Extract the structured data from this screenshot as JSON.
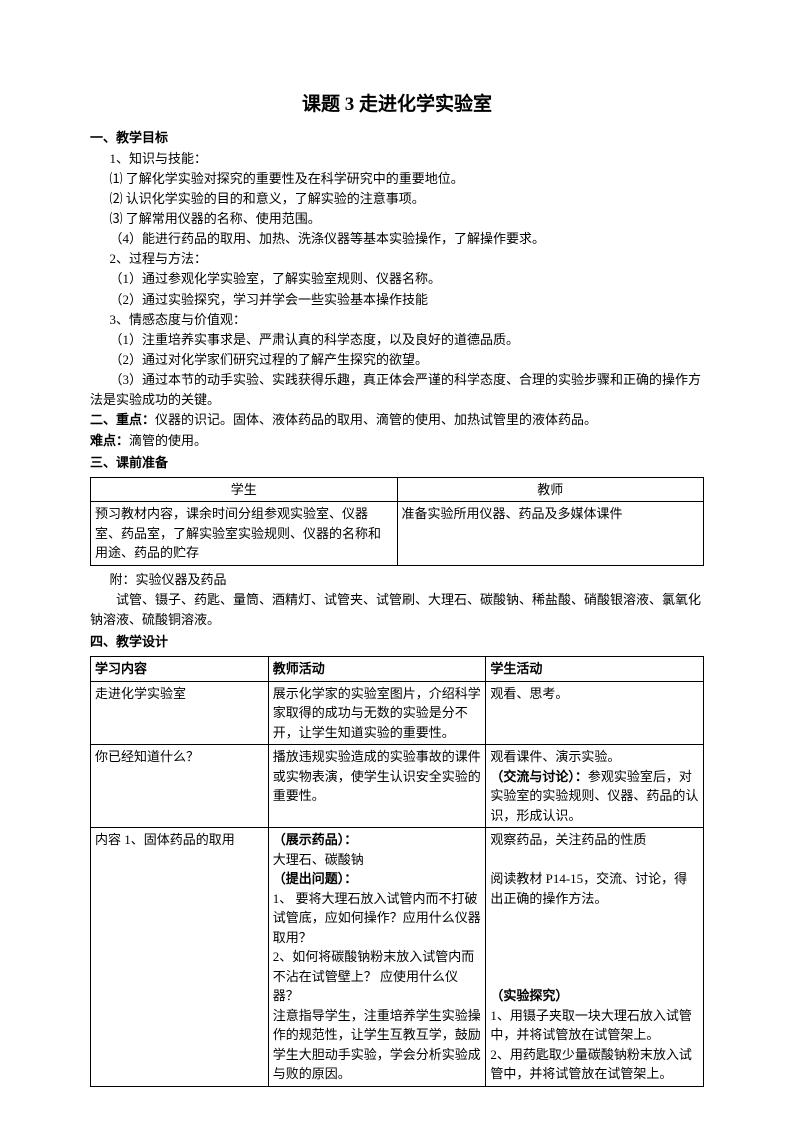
{
  "title": "课题 3 走进化学实验室",
  "section1": {
    "heading": "一、教学目标",
    "sub1": "1、知识与技能：",
    "items1": [
      "⑴ 了解化学实验对探究的重要性及在科学研究中的重要地位。",
      "⑵ 认识化学实验的目的和意义，了解实验的注意事项。",
      "⑶ 了解常用仪器的名称、使用范围。",
      "（4）能进行药品的取用、加热、洗涤仪器等基本实验操作，了解操作要求。"
    ],
    "sub2": "2、过程与方法：",
    "items2": [
      "（1）通过参观化学实验室，了解实验室规则、仪器名称。",
      "（2）通过实验探究，学习并学会一些实验基本操作技能"
    ],
    "sub3": "3、情感态度与价值观：",
    "items3": [
      "（1）注重培养实事求是、严肃认真的科学态度，以及良好的道德品质。",
      "（2）通过对化学家们研究过程的了解产生探究的欲望。",
      "（3）通过本节的动手实验、实践获得乐趣，真正体会严谨的科学态度、合理的实验步骤和正确的操作方法是实验成功的关键。"
    ]
  },
  "section2": {
    "heading_prefix": "二、重点：",
    "heading_text": "仪器的识记。固体、液体药品的取用、滴管的使用、加热试管里的液体药品。",
    "difficulty_prefix": "难点：",
    "difficulty_text": "滴管的使用。"
  },
  "section3": {
    "heading": "三、课前准备"
  },
  "table1": {
    "headers": [
      "学生",
      "教师"
    ],
    "row": [
      "预习教材内容，课余时间分组参观实验室、仪器室、药品室，了解实验室实验规则、仪器的名称和用途、药品的贮存",
      "准备实验所用仪器、药品及多媒体课件"
    ]
  },
  "appendix": {
    "label": "附：实验仪器及药品",
    "text": "试管、镊子、药匙、量筒、酒精灯、试管夹、试管刷、大理石、碳酸钠、稀盐酸、硝酸银溶液、氯氧化钠溶液、硫酸铜溶液。"
  },
  "section4": {
    "heading": "四、教学设计"
  },
  "table2": {
    "headers": [
      "学习内容",
      "教师活动",
      "学生活动"
    ],
    "rows": [
      {
        "c1": "走进化学实验室",
        "c2": "展示化学家的实验室图片，介绍科学家取得的成功与无数的实验是分不开，让学生知道实验的重要性。",
        "c3": "观看、思考。"
      },
      {
        "c1": "你已经知道什么？",
        "c2": "播放违规实验造成的实验事故的课件或实物表演，使学生认识安全实验的重要性。",
        "c3_line1": "观看课件、演示实验。",
        "c3_bold": "（交流与讨论）：",
        "c3_rest": "参观实验室后，对实验室的实验规则、仪器、药品的认识，形成认识。"
      },
      {
        "c1": "内容 1、固体药品的取用",
        "c2_bold1": "（展示药品）：",
        "c2_line1": "大理石、碳酸钠",
        "c2_bold2": "（提出问题）：",
        "c2_line2": "1、 要将大理石放入试管内而不打破试管底，应如何操作？应用什么仪器取用？",
        "c2_line3": "2、如何将碳酸钠粉末放入试管内而不沾在试管壁上？ 应使用什么仪器？",
        "c2_line4": "注意指导学生，注重培养学生实验操作的规范性，让学生互教互学，鼓励学生大胆动手实验，学会分析实验成与败的原因。",
        "c3_line1": "观察药品，关注药品的性质",
        "c3_line2": "阅读教材 P14-15，交流、讨论，得出正确的操作方法。",
        "c3_bold": "（实验探究）",
        "c3_line3": "1、用镊子夹取一块大理石放入试管中，并将试管放在试管架上。",
        "c3_line4": "2、用药匙取少量碳酸钠粉末放入试管中，并将试管放在试管架上。"
      }
    ]
  }
}
